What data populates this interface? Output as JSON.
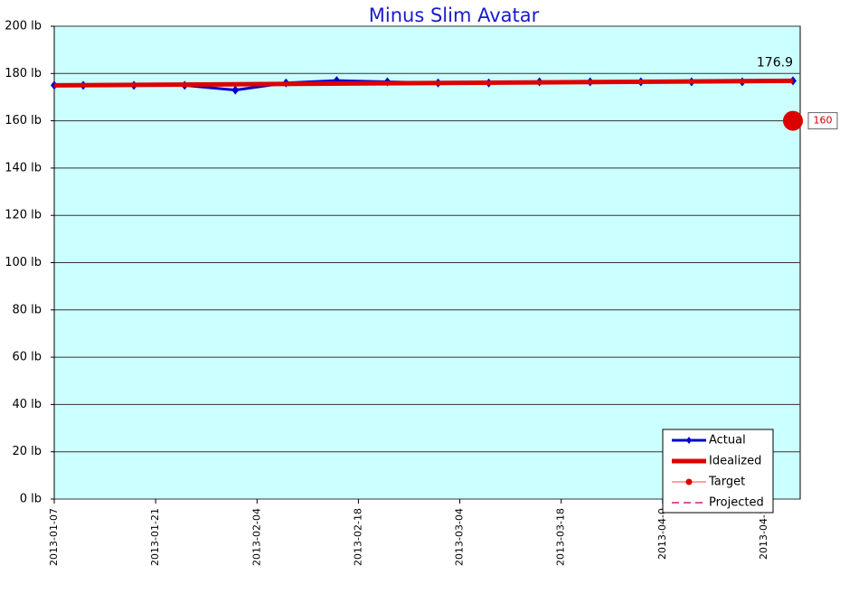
{
  "chart_data": {
    "type": "line",
    "title": "Minus Slim Avatar",
    "xlim": [
      "2013-01-07",
      "2013-04-20"
    ],
    "xticks": [
      "2013-01-07",
      "2013-01-21",
      "2013-02-04",
      "2013-02-18",
      "2013-03-04",
      "2013-03-18",
      {
        "value": "2013-04-01",
        "label": "2013-04-0"
      },
      {
        "value": "2013-04-15",
        "label": "2013-04-1"
      }
    ],
    "ylim": [
      0,
      200
    ],
    "yticks": [
      {
        "value": 0,
        "label": "0 lb"
      },
      {
        "value": 20,
        "label": "20 lb"
      },
      {
        "value": 40,
        "label": "40 lb"
      },
      {
        "value": 60,
        "label": "60 lb"
      },
      {
        "value": 80,
        "label": "80 lb"
      },
      {
        "value": 100,
        "label": "100 lb"
      },
      {
        "value": 120,
        "label": "120 lb"
      },
      {
        "value": 140,
        "label": "140 lb"
      },
      {
        "value": 160,
        "label": "160 lb"
      },
      {
        "value": 180,
        "label": "180 lb"
      },
      {
        "value": 200,
        "label": "200 lb"
      }
    ],
    "grid": true,
    "background": "#ccffff",
    "legend": "bottom-right",
    "series": [
      {
        "name": "Actual",
        "color": "#0000cc",
        "x": [
          "2013-01-07",
          "2013-01-11",
          "2013-01-18",
          "2013-01-25",
          "2013-02-01",
          "2013-02-08",
          "2013-02-15",
          "2013-02-22",
          "2013-03-01",
          "2013-03-08",
          "2013-03-15",
          "2013-03-22",
          "2013-03-29",
          "2013-04-05",
          "2013-04-12",
          "2013-04-19"
        ],
        "values": [
          175,
          175,
          175,
          175,
          173,
          176,
          177,
          176.5,
          176,
          176,
          176.5,
          176.5,
          176.5,
          176.5,
          176.5,
          176.9
        ]
      },
      {
        "name": "Idealized",
        "color": "#dd0000",
        "x": [
          "2013-01-07",
          "2013-04-19"
        ],
        "values": [
          175,
          176.9
        ]
      },
      {
        "name": "Target",
        "color": "#ff8080",
        "x": [
          "2013-04-19"
        ],
        "values": [
          160
        ]
      },
      {
        "name": "Projected",
        "color": "#e0559a",
        "x": [],
        "values": []
      }
    ]
  }
}
